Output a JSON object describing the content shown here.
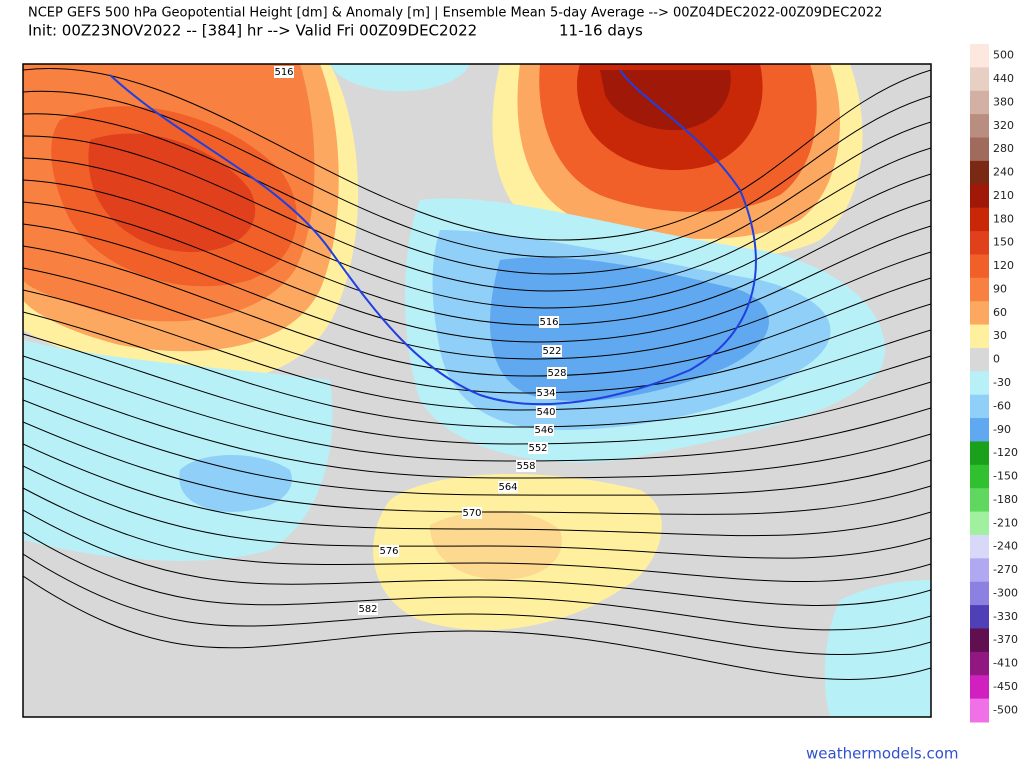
{
  "header": {
    "title": "NCEP GEFS 500 hPa Geopotential Height [dm] & Anomaly [m] | Ensemble Mean 5-day Average --> 00Z04DEC2022-00Z09DEC2022",
    "subtitle": "Init: 00Z23NOV2022 -- [384] hr --> Valid Fri 00Z09DEC2022",
    "range": "11-16 days"
  },
  "colorbar": {
    "levels": [
      500,
      440,
      380,
      320,
      280,
      240,
      210,
      180,
      150,
      120,
      90,
      60,
      30,
      0,
      -30,
      -60,
      -90,
      -120,
      -150,
      -180,
      -210,
      -240,
      -270,
      -300,
      -330,
      -370,
      -410,
      -450,
      -500
    ],
    "colors": [
      "#fde8e0",
      "#e8cfc4",
      "#d2b1a4",
      "#b98d7f",
      "#a06a5c",
      "#7a2a14",
      "#a01808",
      "#c82808",
      "#e0401c",
      "#f06028",
      "#f88040",
      "#fca860",
      "#fff0a0",
      "#d8d8d8",
      "#b8f0f8",
      "#90d0f8",
      "#60a8f0",
      "#1aa01a",
      "#30c030",
      "#60d860",
      "#a0f0a0",
      "#d8d8f8",
      "#b0a8f0",
      "#8c80e0",
      "#5040b8",
      "#601050",
      "#901880",
      "#d020c0",
      "#f070e8"
    ]
  },
  "contour_labels": [
    516,
    516,
    522,
    528,
    534,
    540,
    546,
    552,
    558,
    564,
    570,
    576,
    582
  ],
  "watermark": "weathermodels.com"
}
